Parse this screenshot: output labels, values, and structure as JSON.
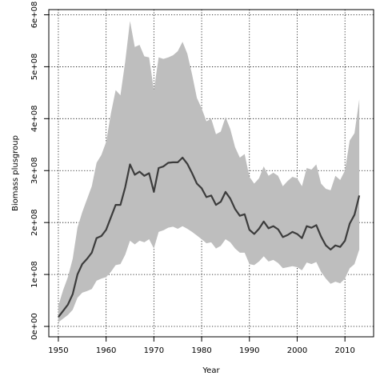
{
  "chart_data": {
    "type": "line",
    "title": "",
    "xlabel": "Year",
    "ylabel": "Biomass plusgroup",
    "xlim": [
      1948,
      2016
    ],
    "ylim": [
      -20000000,
      610000000
    ],
    "grid": true,
    "x_ticks": [
      {
        "value": 1950,
        "label": "1950"
      },
      {
        "value": 1960,
        "label": "1960"
      },
      {
        "value": 1970,
        "label": "1970"
      },
      {
        "value": 1980,
        "label": "1980"
      },
      {
        "value": 1990,
        "label": "1990"
      },
      {
        "value": 2000,
        "label": "2000"
      },
      {
        "value": 2010,
        "label": "2010"
      }
    ],
    "y_ticks": [
      {
        "value": 0,
        "label": "0e+00"
      },
      {
        "value": 100000000,
        "label": "1e+08"
      },
      {
        "value": 200000000,
        "label": "2e+08"
      },
      {
        "value": 300000000,
        "label": "3e+08"
      },
      {
        "value": 400000000,
        "label": "4e+08"
      },
      {
        "value": 500000000,
        "label": "5e+08"
      },
      {
        "value": 600000000,
        "label": "6e+08"
      }
    ],
    "colors": {
      "band": "#bebebe",
      "line": "#3c3c3c",
      "grid": "#000000"
    },
    "x": [
      1950,
      1951,
      1952,
      1953,
      1954,
      1955,
      1956,
      1957,
      1958,
      1959,
      1960,
      1961,
      1962,
      1963,
      1964,
      1965,
      1966,
      1967,
      1968,
      1969,
      1970,
      1971,
      1972,
      1973,
      1974,
      1975,
      1976,
      1977,
      1978,
      1979,
      1980,
      1981,
      1982,
      1983,
      1984,
      1985,
      1986,
      1987,
      1988,
      1989,
      1990,
      1991,
      1992,
      1993,
      1994,
      1995,
      1996,
      1997,
      1998,
      1999,
      2000,
      2001,
      2002,
      2003,
      2004,
      2005,
      2006,
      2007,
      2008,
      2009,
      2010,
      2011,
      2012,
      2013
    ],
    "series": [
      {
        "values": [
          18000000,
          30000000,
          42000000,
          62000000,
          100000000,
          120000000,
          130000000,
          142000000,
          170000000,
          174000000,
          186000000,
          210000000,
          234000000,
          234000000,
          268000000,
          312000000,
          292000000,
          298000000,
          290000000,
          295000000,
          259000000,
          305000000,
          308000000,
          315000000,
          316000000,
          316000000,
          325000000,
          313000000,
          295000000,
          275000000,
          266000000,
          249000000,
          252000000,
          234000000,
          240000000,
          259000000,
          246000000,
          226000000,
          213000000,
          216000000,
          186000000,
          178000000,
          188000000,
          202000000,
          189000000,
          193000000,
          187000000,
          172000000,
          176000000,
          182000000,
          178000000,
          170000000,
          193000000,
          190000000,
          195000000,
          173000000,
          156000000,
          148000000,
          156000000,
          153000000,
          165000000,
          198000000,
          215000000,
          252000000
        ]
      }
    ],
    "band": {
      "upper": [
        40000000,
        70000000,
        95000000,
        130000000,
        190000000,
        220000000,
        245000000,
        270000000,
        315000000,
        330000000,
        355000000,
        410000000,
        455000000,
        445000000,
        510000000,
        588000000,
        538000000,
        542000000,
        520000000,
        518000000,
        455000000,
        518000000,
        515000000,
        518000000,
        522000000,
        530000000,
        548000000,
        525000000,
        485000000,
        440000000,
        420000000,
        395000000,
        400000000,
        370000000,
        375000000,
        403000000,
        380000000,
        345000000,
        325000000,
        332000000,
        288000000,
        275000000,
        285000000,
        308000000,
        290000000,
        296000000,
        290000000,
        270000000,
        280000000,
        288000000,
        285000000,
        270000000,
        305000000,
        302000000,
        312000000,
        275000000,
        265000000,
        262000000,
        290000000,
        282000000,
        300000000,
        358000000,
        372000000,
        437000000
      ],
      "lower": [
        8000000,
        15000000,
        22000000,
        32000000,
        55000000,
        65000000,
        68000000,
        72000000,
        88000000,
        92000000,
        95000000,
        105000000,
        118000000,
        120000000,
        138000000,
        165000000,
        158000000,
        165000000,
        162000000,
        168000000,
        150000000,
        182000000,
        185000000,
        190000000,
        192000000,
        188000000,
        193000000,
        188000000,
        182000000,
        175000000,
        168000000,
        160000000,
        162000000,
        150000000,
        155000000,
        168000000,
        162000000,
        150000000,
        142000000,
        142000000,
        120000000,
        118000000,
        125000000,
        135000000,
        125000000,
        128000000,
        122000000,
        112000000,
        114000000,
        116000000,
        114000000,
        108000000,
        123000000,
        120000000,
        124000000,
        105000000,
        92000000,
        82000000,
        86000000,
        83000000,
        92000000,
        112000000,
        120000000,
        148000000
      ]
    }
  }
}
